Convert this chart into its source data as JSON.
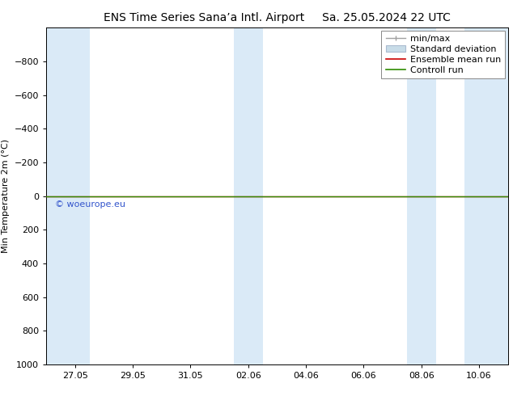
{
  "title_left": "ENS Time Series Sana’a Intl. Airport",
  "title_right": "Sa. 25.05.2024 22 UTC",
  "ylabel": "Min Temperature 2m (°C)",
  "watermark": "© woeurope.eu",
  "ylim_bottom": 1000,
  "ylim_top": -1000,
  "yticks": [
    -800,
    -600,
    -400,
    -200,
    0,
    200,
    400,
    600,
    800,
    1000
  ],
  "x_labels": [
    "27.05",
    "29.05",
    "31.05",
    "02.06",
    "04.06",
    "06.06",
    "08.06",
    "10.06"
  ],
  "x_positions": [
    1,
    3,
    5,
    7,
    9,
    11,
    13,
    15
  ],
  "xlim": [
    0,
    16
  ],
  "shaded_bands": [
    [
      0,
      1.5
    ],
    [
      6.5,
      7.5
    ],
    [
      12.5,
      13.5
    ],
    [
      14.5,
      16
    ]
  ],
  "shaded_color": "#daeaf7",
  "horizontal_line_y": 0,
  "line_color_control": "#2d8b00",
  "line_color_ensemble": "#cc0000",
  "line_color_minmax": "#909090",
  "background_color": "#ffffff",
  "legend_entries": [
    {
      "label": "min/max",
      "color": "#a0a0a0"
    },
    {
      "label": "Standard deviation",
      "color": "#c8dce8"
    },
    {
      "label": "Ensemble mean run",
      "color": "#cc0000"
    },
    {
      "label": "Controll run",
      "color": "#2d8b00"
    }
  ],
  "font_size_title": 10,
  "font_size_ticks": 8,
  "font_size_legend": 8,
  "font_size_ylabel": 8,
  "font_size_watermark": 8
}
